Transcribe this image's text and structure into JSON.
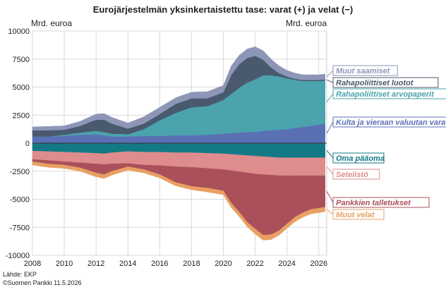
{
  "chart_data": {
    "type": "area",
    "title": "Eurojärjestelmän yksinkertaistettu tase: varat (+) ja velat (−)",
    "unit_left": "Mrd. euroa",
    "unit_right": "Mrd. euroa",
    "ylim": [
      -10000,
      10000
    ],
    "xlim": [
      2008,
      2026.5
    ],
    "y_ticks": [
      10000,
      7500,
      5000,
      2500,
      0,
      -2500,
      -5000,
      -7500,
      -10000
    ],
    "y_tick_labels": [
      "10000",
      "7500",
      "5000",
      "2500",
      "0",
      "-2500",
      "-5000",
      "-7500",
      "-10000"
    ],
    "x_ticks": [
      2008,
      2010,
      2012,
      2014,
      2016,
      2018,
      2020,
      2022,
      2024,
      2026
    ],
    "x_tick_labels": [
      "2008",
      "2010",
      "2012",
      "2014",
      "2016",
      "2018",
      "2020",
      "2022",
      "2024",
      "2026"
    ],
    "grid": true,
    "legend_placement": "right",
    "x": [
      2008,
      2009,
      2010,
      2011,
      2012,
      2012.5,
      2013,
      2014,
      2015,
      2016,
      2017,
      2018,
      2019,
      2020,
      2020.5,
      2021,
      2021.5,
      2022,
      2022.5,
      2023,
      2023.5,
      2024,
      2024.5,
      2025,
      2025.5,
      2026,
      2026.4
    ],
    "assets": [
      {
        "name": "Kulta ja vieraan valuutan varat",
        "color": "#5b6fb5",
        "values": [
          600,
          600,
          650,
          750,
          800,
          700,
          600,
          600,
          650,
          650,
          700,
          700,
          750,
          850,
          900,
          950,
          1000,
          1000,
          1100,
          1150,
          1200,
          1250,
          1350,
          1450,
          1550,
          1650,
          1750
        ]
      },
      {
        "name": "Rahapoliittiset arvopaperit",
        "color": "#4aa3ad",
        "values": [
          0,
          0,
          100,
          200,
          300,
          300,
          250,
          200,
          600,
          1400,
          2000,
          2500,
          2550,
          3000,
          3500,
          4000,
          4400,
          4700,
          4950,
          4900,
          4750,
          4550,
          4300,
          4100,
          4000,
          3900,
          3850
        ]
      },
      {
        "name": "Rahapoliittiset luotot",
        "color": "#4a5a6e",
        "values": [
          550,
          550,
          450,
          600,
          1000,
          1100,
          900,
          500,
          500,
          550,
          800,
          800,
          700,
          700,
          1700,
          2100,
          2200,
          2100,
          1400,
          700,
          300,
          150,
          100,
          100,
          100,
          100,
          100
        ]
      },
      {
        "name": "Muut saamiset",
        "color": "#8e96b8",
        "values": [
          300,
          350,
          350,
          400,
          500,
          550,
          550,
          500,
          600,
          600,
          550,
          550,
          600,
          600,
          800,
          800,
          800,
          800,
          800,
          750,
          650,
          550,
          500,
          450,
          450,
          450,
          450
        ]
      }
    ],
    "liabilities": [
      {
        "name": "Oma pääoma",
        "color": "#137a85",
        "values": [
          -700,
          -750,
          -800,
          -850,
          -900,
          -950,
          -850,
          -750,
          -800,
          -800,
          -850,
          -850,
          -900,
          -950,
          -1000,
          -1050,
          -1100,
          -1150,
          -1200,
          -1250,
          -1300,
          -1300,
          -1300,
          -1300,
          -1300,
          -1300,
          -1300
        ]
      },
      {
        "name": "Setelistö",
        "color": "#df8c8e",
        "values": [
          -750,
          -800,
          -850,
          -900,
          -950,
          -950,
          -1000,
          -1050,
          -1150,
          -1200,
          -1250,
          -1300,
          -1350,
          -1400,
          -1450,
          -1500,
          -1550,
          -1600,
          -1600,
          -1600,
          -1600,
          -1600,
          -1600,
          -1600,
          -1600,
          -1600,
          -1600
        ]
      },
      {
        "name": "Pankkien talletukset",
        "color": "#a9505a",
        "values": [
          -200,
          -300,
          -300,
          -450,
          -800,
          -900,
          -650,
          -300,
          -400,
          -800,
          -1400,
          -1700,
          -1750,
          -1900,
          -2900,
          -3600,
          -4400,
          -4900,
          -5400,
          -5300,
          -4900,
          -4300,
          -3700,
          -3300,
          -3000,
          -2900,
          -2800
        ]
      },
      {
        "name": "Muut velat",
        "color": "#e8a064",
        "values": [
          -300,
          -300,
          -300,
          -300,
          -350,
          -350,
          -350,
          -300,
          -300,
          -300,
          -300,
          -300,
          -350,
          -350,
          -400,
          -400,
          -400,
          -450,
          -450,
          -450,
          -400,
          -400,
          -400,
          -400,
          -400,
          -400,
          -400
        ]
      }
    ],
    "labels_order": [
      "Muut saamiset",
      "Rahapoliittiset luotot",
      "Rahapoliittiset arvopaperit",
      "Kulta ja vieraan valuutan varat",
      "Oma pääoma",
      "Setelistö",
      "Pankkien talletukset",
      "Muut velat"
    ]
  },
  "source": "Lähde: EKP",
  "copyright": "©Suomen Pankki 11.5.2026"
}
